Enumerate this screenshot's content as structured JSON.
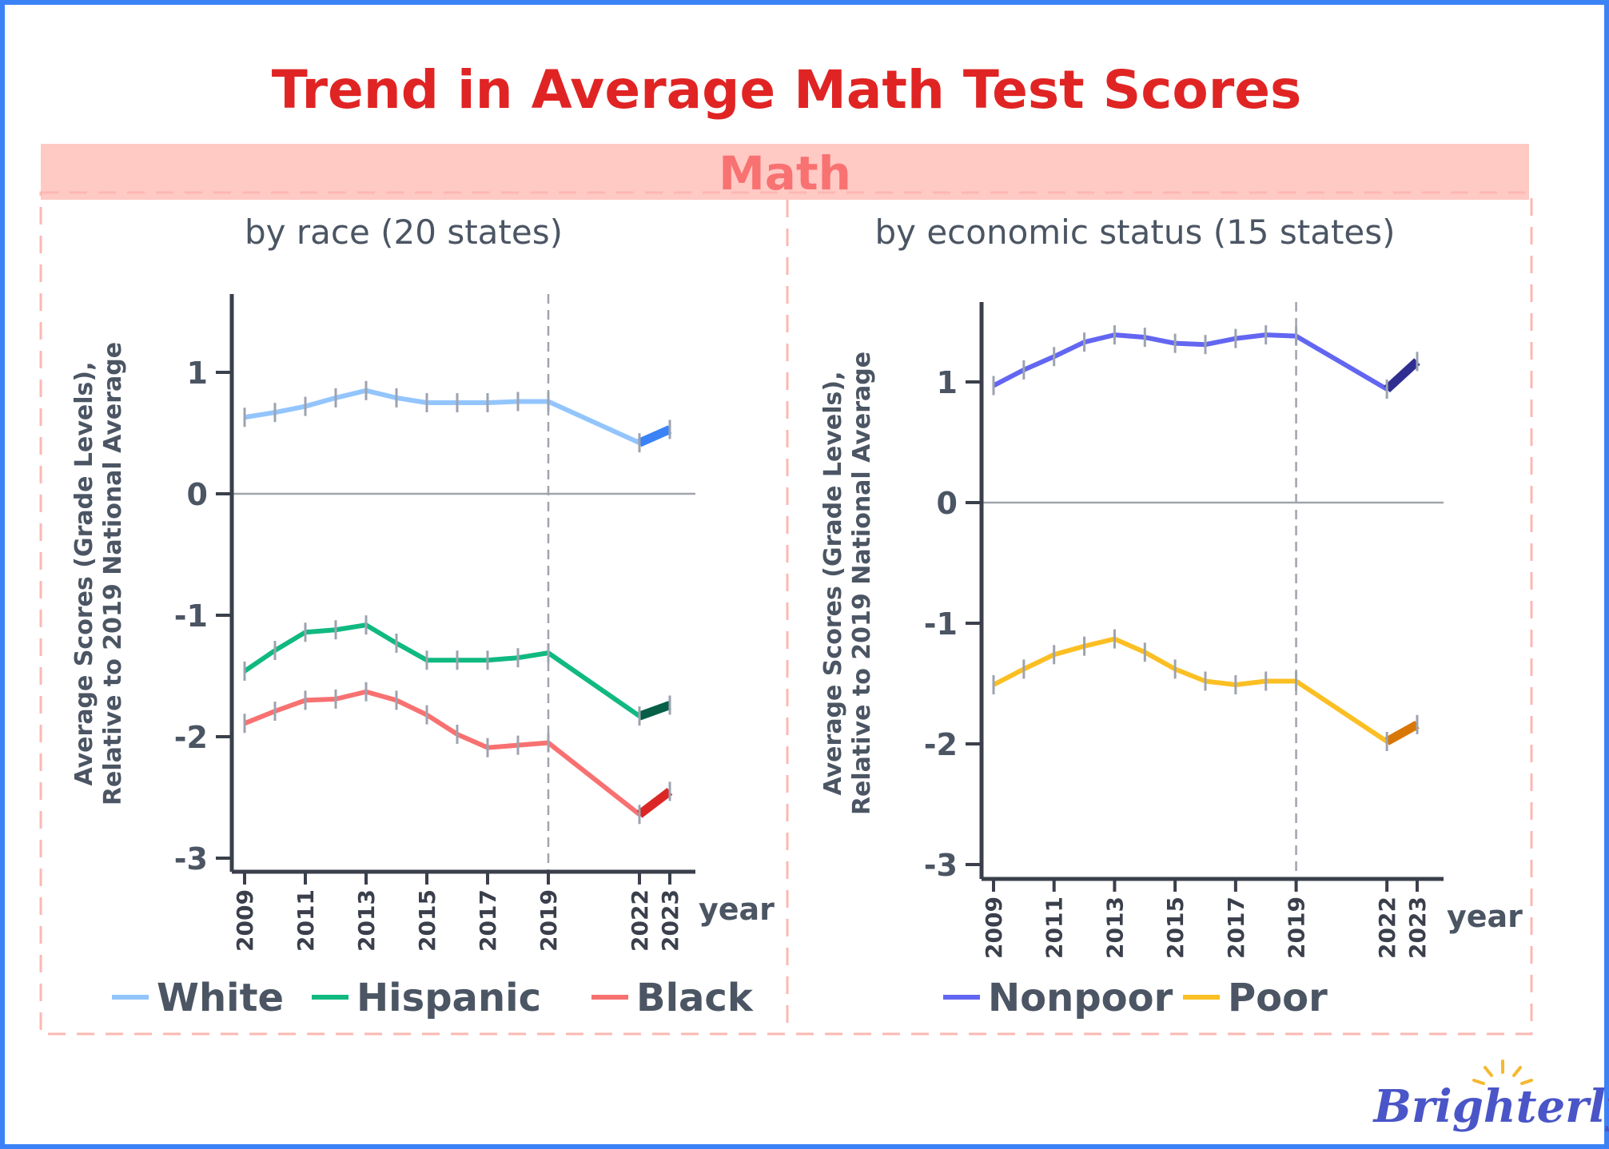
{
  "title": "Trend in Average Math Test Scores",
  "band_label": "Math",
  "logo_text": "Brighterly",
  "colors": {
    "title": "#e02424",
    "band": "#ffc9c4",
    "band_text": "#f87272",
    "border": "#3b82f6",
    "axis": "#3a3f4b",
    "logo": "#4a55c8"
  },
  "chart_data": [
    {
      "type": "line",
      "title": "by race (20 states)",
      "ylabel_line1": "Average  Scores  (Grade  Levels),",
      "ylabel_line2": "Relative to 2019 National Average",
      "xlabel": "year",
      "ylim": [
        -3.1,
        1.6
      ],
      "yticks": [
        1.0,
        0.0,
        -1.0,
        -2.0,
        -3.0
      ],
      "ytick_labels": [
        "1.0",
        "0.0",
        "-1.0",
        "-2.0",
        "-3.0"
      ],
      "xticks": [
        "2009",
        "2011",
        "2013",
        "2015",
        "2017",
        "2019",
        "2022",
        "2023"
      ],
      "x": [
        2009,
        2010,
        2011,
        2012,
        2013,
        2014,
        2015,
        2016,
        2017,
        2018,
        2019,
        2022,
        2023
      ],
      "reference_year": 2019,
      "legend_position": "bottom",
      "series": [
        {
          "name": "White",
          "color": "#93c5fd",
          "recent_color": "#3b82f6",
          "values": [
            0.63,
            0.67,
            0.72,
            0.79,
            0.85,
            0.79,
            0.75,
            0.75,
            0.75,
            0.76,
            0.76,
            0.42,
            0.53
          ]
        },
        {
          "name": "Hispanic",
          "color": "#10b981",
          "recent_color": "#065f46",
          "values": [
            -1.46,
            -1.29,
            -1.14,
            -1.12,
            -1.08,
            -1.23,
            -1.37,
            -1.37,
            -1.37,
            -1.35,
            -1.31,
            -1.83,
            -1.74
          ]
        },
        {
          "name": "Black",
          "color": "#f87171",
          "recent_color": "#dc2626",
          "values": [
            -1.89,
            -1.79,
            -1.7,
            -1.69,
            -1.63,
            -1.7,
            -1.82,
            -1.98,
            -2.09,
            -2.07,
            -2.05,
            -2.64,
            -2.45
          ]
        }
      ]
    },
    {
      "type": "line",
      "title": "by economic status (15 states)",
      "ylabel_line1": "Average  Scores  (Grade  Levels),",
      "ylabel_line2": "Relative to 2019 National Average",
      "xlabel": "year",
      "ylim": [
        -3.1,
        1.6
      ],
      "yticks": [
        1.0,
        0.0,
        -1.0,
        -2.0,
        -3.0
      ],
      "ytick_labels": [
        "1.0",
        "0.0",
        "-1.0",
        "-2.0",
        "-3.0"
      ],
      "xticks": [
        "2009",
        "2011",
        "2013",
        "2015",
        "2017",
        "2019",
        "2022",
        "2023"
      ],
      "x": [
        2009,
        2010,
        2011,
        2012,
        2013,
        2014,
        2015,
        2016,
        2017,
        2018,
        2019,
        2022,
        2023
      ],
      "reference_year": 2019,
      "legend_position": "bottom",
      "series": [
        {
          "name": "Nonpoor",
          "color": "#6366f1",
          "recent_color": "#312e91",
          "values": [
            0.97,
            1.1,
            1.21,
            1.33,
            1.39,
            1.37,
            1.32,
            1.31,
            1.36,
            1.39,
            1.38,
            0.94,
            1.17
          ]
        },
        {
          "name": "Poor",
          "color": "#fbbf24",
          "recent_color": "#d97706",
          "values": [
            -1.51,
            -1.38,
            -1.26,
            -1.19,
            -1.13,
            -1.24,
            -1.38,
            -1.48,
            -1.51,
            -1.48,
            -1.48,
            -1.98,
            -1.84
          ]
        }
      ]
    }
  ]
}
